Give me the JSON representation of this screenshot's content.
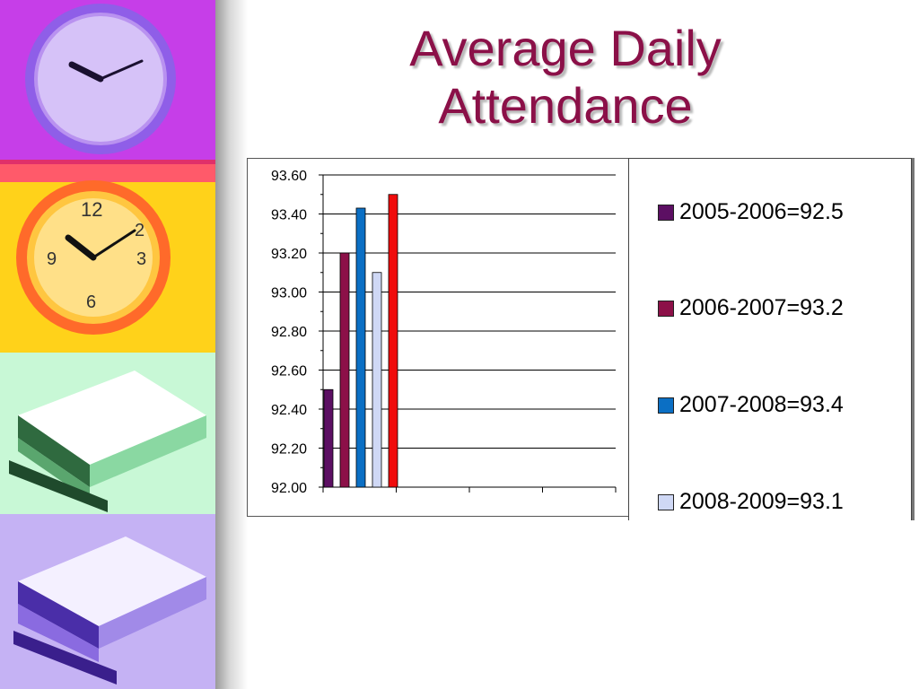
{
  "slide": {
    "title_line1": "Average Daily",
    "title_line2": "Attendance"
  },
  "decor": [
    {
      "name": "purple-clock-photo",
      "icon": "clock-icon",
      "color": "#c13fe6"
    },
    {
      "name": "yellow-clock-photo",
      "icon": "clock-icon",
      "color": "#ffcc00"
    },
    {
      "name": "green-books-photo",
      "icon": "books-icon",
      "color": "#9ff0b4"
    },
    {
      "name": "lavender-books-photo",
      "icon": "books-icon",
      "color": "#b9a3f0"
    }
  ],
  "chart_data": {
    "type": "bar",
    "title": "",
    "xlabel": "",
    "ylabel": "",
    "ylim": [
      92.0,
      93.6
    ],
    "yticks": [
      "92.00",
      "92.20",
      "92.40",
      "92.60",
      "92.80",
      "93.00",
      "93.20",
      "93.40",
      "93.60"
    ],
    "grid": true,
    "legend_position": "right",
    "category_slots": 4,
    "series": [
      {
        "name": "2005-2006=92.5",
        "value": 92.5,
        "color": "#5c0f63"
      },
      {
        "name": "2006-2007=93.2",
        "value": 93.2,
        "color": "#8c1048"
      },
      {
        "name": "2007-2008=93.4",
        "value": 93.43,
        "color": "#0b6fc4"
      },
      {
        "name": "2008-2009=93.1",
        "value": 93.1,
        "color": "#cfd8f5"
      },
      {
        "name": "",
        "value": 93.5,
        "color": "#f00c0c"
      }
    ]
  }
}
